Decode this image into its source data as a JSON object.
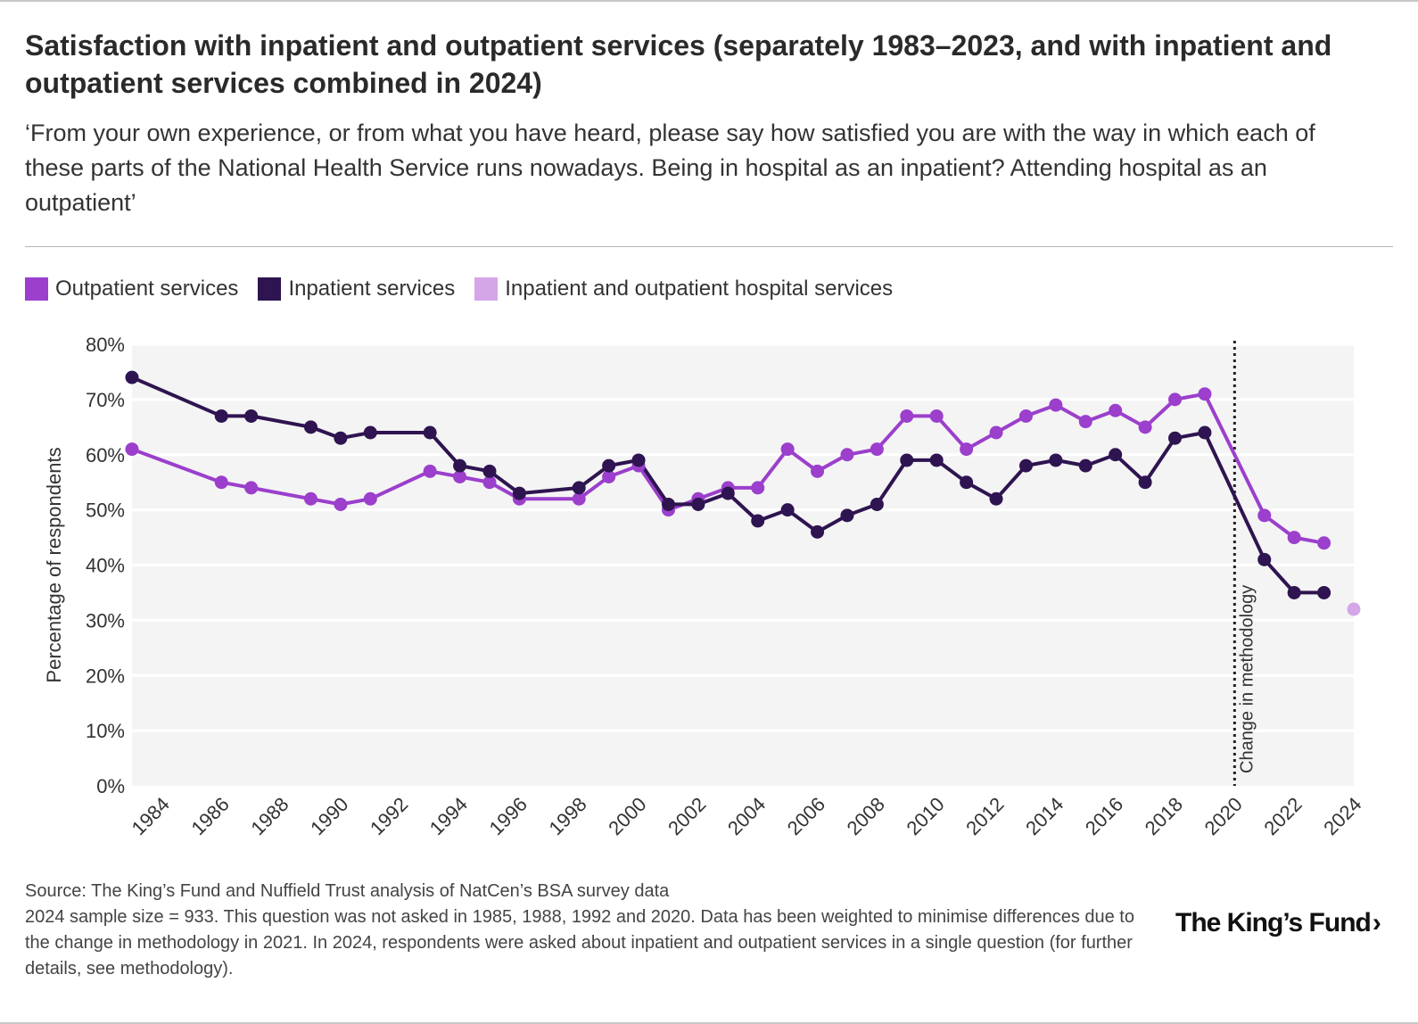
{
  "title": "Satisfaction with inpatient and outpatient services (separately 1983–2023, and with inpatient and outpatient services combined in 2024)",
  "subtitle": "‘From your own experience, or from what you have heard, please say how satisfied you are with the way in which each of these parts of the National Health Service runs nowadays. Being in hospital as an inpatient? Attending hospital as an outpatient’",
  "legend": [
    {
      "label": "Outpatient services",
      "color": "#9b3fcc"
    },
    {
      "label": "Inpatient services",
      "color": "#2e1450"
    },
    {
      "label": "Inpatient and outpatient hospital services",
      "color": "#d4a6e8"
    }
  ],
  "footer": {
    "source": "Source: The King’s Fund and Nuffield Trust analysis of NatCen’s BSA survey data",
    "note": "2024 sample size = 933. This question was not asked in 1985, 1988, 1992 and 2020. Data has been weighted to minimise differences due to the change in methodology in 2021. In 2024, respondents were asked about inpatient and outpatient services in a single question (for further details, see methodology)."
  },
  "logo": "The King’s Fund",
  "chart_data": {
    "type": "line",
    "title": "Satisfaction with inpatient and outpatient services",
    "xlabel": "",
    "ylabel": "Percentage of respondents",
    "xlim": [
      1983,
      2024
    ],
    "ylim": [
      0,
      80
    ],
    "y_ticks": [
      "0%",
      "10%",
      "20%",
      "30%",
      "40%",
      "50%",
      "60%",
      "70%",
      "80%"
    ],
    "x_ticks": [
      "1984",
      "1986",
      "1988",
      "1990",
      "1992",
      "1994",
      "1996",
      "1998",
      "2000",
      "2002",
      "2004",
      "2006",
      "2008",
      "2010",
      "2012",
      "2014",
      "2016",
      "2018",
      "2020",
      "2022",
      "2024"
    ],
    "annotation": {
      "label": "Change in methodology",
      "x": 2020.0
    },
    "series": [
      {
        "name": "Outpatient services",
        "color": "#9b3fcc",
        "points": [
          [
            1983,
            61
          ],
          [
            1986,
            55
          ],
          [
            1987,
            54
          ],
          [
            1989,
            52
          ],
          [
            1990,
            51
          ],
          [
            1991,
            52
          ],
          [
            1993,
            57
          ],
          [
            1994,
            56
          ],
          [
            1995,
            55
          ],
          [
            1996,
            52
          ],
          [
            1998,
            52
          ],
          [
            1999,
            56
          ],
          [
            2000,
            58
          ],
          [
            2001,
            50
          ],
          [
            2002,
            52
          ],
          [
            2003,
            54
          ],
          [
            2004,
            54
          ],
          [
            2005,
            61
          ],
          [
            2006,
            57
          ],
          [
            2007,
            60
          ],
          [
            2008,
            61
          ],
          [
            2009,
            67
          ],
          [
            2010,
            67
          ],
          [
            2011,
            61
          ],
          [
            2012,
            64
          ],
          [
            2013,
            67
          ],
          [
            2014,
            69
          ],
          [
            2015,
            66
          ],
          [
            2016,
            68
          ],
          [
            2017,
            65
          ],
          [
            2018,
            70
          ],
          [
            2019,
            71
          ],
          [
            2021,
            49
          ],
          [
            2022,
            45
          ],
          [
            2023,
            44
          ]
        ]
      },
      {
        "name": "Inpatient services",
        "color": "#2e1450",
        "points": [
          [
            1983,
            74
          ],
          [
            1986,
            67
          ],
          [
            1987,
            67
          ],
          [
            1989,
            65
          ],
          [
            1990,
            63
          ],
          [
            1991,
            64
          ],
          [
            1993,
            64
          ],
          [
            1994,
            58
          ],
          [
            1995,
            57
          ],
          [
            1996,
            53
          ],
          [
            1998,
            54
          ],
          [
            1999,
            58
          ],
          [
            2000,
            59
          ],
          [
            2001,
            51
          ],
          [
            2002,
            51
          ],
          [
            2003,
            53
          ],
          [
            2004,
            48
          ],
          [
            2005,
            50
          ],
          [
            2006,
            46
          ],
          [
            2007,
            49
          ],
          [
            2008,
            51
          ],
          [
            2009,
            59
          ],
          [
            2010,
            59
          ],
          [
            2011,
            55
          ],
          [
            2012,
            52
          ],
          [
            2013,
            58
          ],
          [
            2014,
            59
          ],
          [
            2015,
            58
          ],
          [
            2016,
            60
          ],
          [
            2017,
            55
          ],
          [
            2018,
            63
          ],
          [
            2019,
            64
          ],
          [
            2021,
            41
          ],
          [
            2022,
            35
          ],
          [
            2023,
            35
          ]
        ]
      },
      {
        "name": "Inpatient and outpatient hospital services",
        "color": "#d4a6e8",
        "points": [
          [
            2024,
            32
          ]
        ]
      }
    ]
  }
}
